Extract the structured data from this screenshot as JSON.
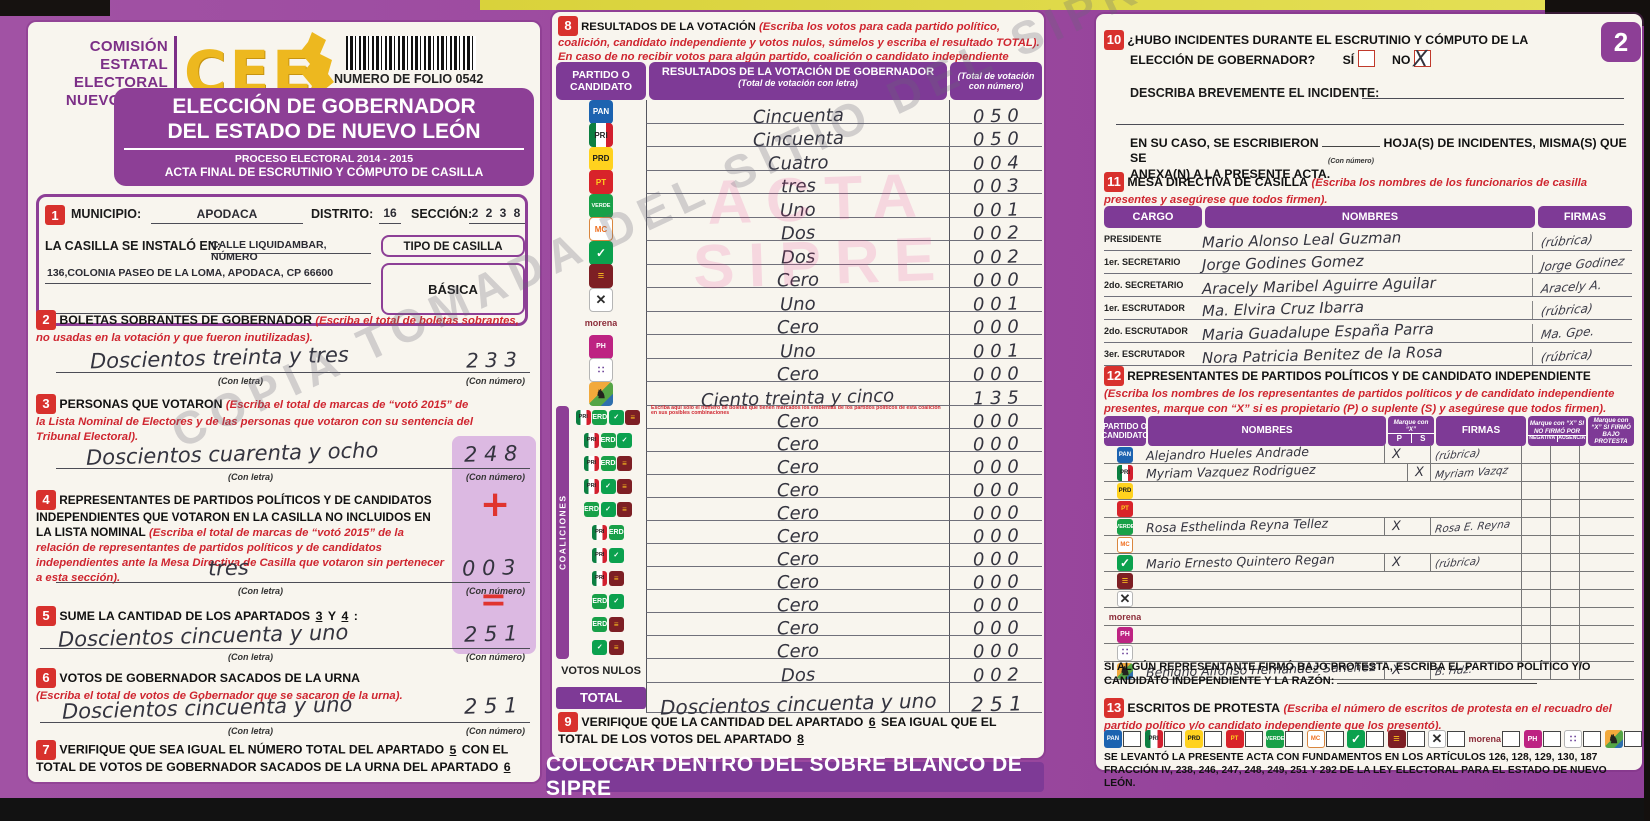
{
  "labels": {
    "con_letra": "(Con letra)",
    "con_numero": "(Con número)"
  },
  "watermarks": {
    "diagonal": "COPIA TOMADA DEL SITIO DEL SIPRE",
    "stamp1": "ACTA",
    "stamp2": "SIPRE"
  },
  "header": {
    "org1": "COMISIÓN",
    "org2": "ESTATAL",
    "org3": "ELECTORAL",
    "org4": "NUEVO LEÓN",
    "logo": "CEE",
    "folio": "NUMERO DE FOLIO 0542",
    "title1": "ELECCIÓN DE GOBERNADOR",
    "title2": "DEL ESTADO DE NUEVO LEÓN",
    "process": "PROCESO ELECTORAL  2014 - 2015",
    "acta": "ACTA FINAL DE ESCRUTINIO Y CÓMPUTO DE CASILLA",
    "page_badge": "2"
  },
  "colors": {
    "purple": "#8d3f96",
    "lavender": "#dcb9e2",
    "red": "#cf2630",
    "yellow": "#edb81f"
  },
  "s1": {
    "num": "1",
    "municipio_label": "MUNICIPIO:",
    "municipio": "APODACA",
    "distrito_label": "DISTRITO:",
    "distrito": "16",
    "seccion_label": "SECCIÓN:",
    "seccion": "2  2  3  8",
    "casilla_label": "LA CASILLA SE INSTALÓ EN:",
    "dir1": "CALLE LIQUIDAMBAR, NÚMERO",
    "dir2": "136,COLONIA PASEO DE LA LOMA, APODACA, CP 66600",
    "tipo_label": "TIPO DE CASILLA",
    "tipo": "BÁSICA"
  },
  "s2": {
    "num": "2",
    "title": "BOLETAS SOBRANTES DE GOBERNADOR",
    "instr": "(Escriba el total de boletas sobrantes, no usadas en la votación y que fueron inutilizadas).",
    "letra": "Doscientos treinta y tres",
    "numero": "2 3 3"
  },
  "s3": {
    "num": "3",
    "title": "PERSONAS QUE VOTARON",
    "instr": "(Escriba el total de marcas de “votó 2015” de la Lista Nominal de Electores y de las personas que votaron con su sentencia del Tribunal Electoral).",
    "letra": "Doscientos cuarenta y ocho",
    "numero": "2 4 8"
  },
  "s4": {
    "num": "4",
    "title": "REPRESENTANTES DE PARTIDOS POLÍTICOS Y DE CANDIDATOS INDEPENDIENTES QUE VOTARON EN LA CASILLA NO INCLUIDOS EN LA LISTA NOMINAL",
    "instr": "(Escriba el total de marcas de “votó 2015” de la relación de representantes de partidos políticos y de candidatos independientes ante la Mesa Directiva de Casilla que votaron sin pertenecer a esta sección).",
    "plus": "+",
    "letra": "tres",
    "numero": "0 0 3"
  },
  "s5": {
    "num": "5",
    "pre": "SUME LA CANTIDAD DE LOS APARTADOS",
    "ref3": "3",
    "y": "Y",
    "ref4": "4",
    "colon": ":",
    "equals": "=",
    "letra": "Doscientos cincuenta y uno",
    "numero": "2 5 1"
  },
  "s6": {
    "num": "6",
    "title": "VOTOS DE GOBERNADOR SACADOS DE LA URNA",
    "instr": "(Escriba el total de votos de Gobernador que se sacaron de la urna).",
    "letra": "Doscientos cincuenta y uno",
    "numero": "2 5 1"
  },
  "s7": {
    "num": "7",
    "pre": "VERIFIQUE QUE SEA IGUAL EL NÚMERO TOTAL DEL APARTADO",
    "ref5": "5",
    "mid": "CON EL TOTAL DE VOTOS DE GOBERNADOR SACADOS DE LA URNA DEL APARTADO",
    "ref6": "6"
  },
  "results": {
    "num": "8",
    "title": "RESULTADOS DE LA VOTACIÓN",
    "instr1": "(Escriba los votos para cada partido político, coalición, candidato independiente y votos nulos, súmelos y escriba el resultado TOTAL).",
    "instr2": "En caso de no recibir votos para algún partido, coalición o candidato independiente escriba ceros.",
    "col1": "PARTIDO O CANDIDATO",
    "col2": "RESULTADOS DE LA VOTACIÓN DE GOBERNADOR",
    "col2b": "(Total de votación con letra)",
    "col3": "(Total de votación con número)",
    "coaliciones_label": "COALICIONES",
    "coalition_note": "Escriba aquí sólo el número de boletas que tienen marcados los emblemas de los partidos políticos de esta coalición en sus posibles combinaciones",
    "parties": [
      {
        "id": "pan",
        "name": "PAN",
        "word": "Cincuenta",
        "number": "050"
      },
      {
        "id": "pri",
        "name": "PRI",
        "word": "Cincuenta",
        "number": "050"
      },
      {
        "id": "prd",
        "name": "PRD",
        "word": "Cuatro",
        "number": "004"
      },
      {
        "id": "pt",
        "name": "PT",
        "word": "tres",
        "number": "003"
      },
      {
        "id": "verde",
        "name": "VERDE",
        "word": "Uno",
        "number": "001"
      },
      {
        "id": "mc",
        "name": "Movimiento Ciudadano",
        "word": "Dos",
        "number": "002"
      },
      {
        "id": "alianza",
        "name": "Alianza",
        "word": "Dos",
        "number": "002"
      },
      {
        "id": "democrata",
        "name": "Demócrata",
        "word": "Cero",
        "number": "000"
      },
      {
        "id": "cruzada",
        "name": "Cruzada Ciudadana",
        "word": "Uno",
        "number": "001"
      },
      {
        "id": "morena",
        "name": "morena",
        "word": "Cero",
        "number": "000"
      },
      {
        "id": "humanista",
        "name": "Humanista",
        "word": "Uno",
        "number": "001"
      },
      {
        "id": "encuentro",
        "name": "Encuentro Social",
        "word": "Cero",
        "number": "000"
      },
      {
        "id": "bronco",
        "name": "Candidato Independiente",
        "word": "Ciento treinta y cinco",
        "number": "135"
      }
    ],
    "coalitions": [
      {
        "members": [
          "pri",
          "verde",
          "alianza",
          "democrata"
        ],
        "word": "Cero",
        "number": "000"
      },
      {
        "members": [
          "pri",
          "verde",
          "alianza"
        ],
        "word": "Cero",
        "number": "000"
      },
      {
        "members": [
          "pri",
          "verde",
          "democrata"
        ],
        "word": "Cero",
        "number": "000"
      },
      {
        "members": [
          "pri",
          "alianza",
          "democrata"
        ],
        "word": "Cero",
        "number": "000"
      },
      {
        "members": [
          "verde",
          "alianza",
          "democrata"
        ],
        "word": "Cero",
        "number": "000"
      },
      {
        "members": [
          "pri",
          "verde"
        ],
        "word": "Cero",
        "number": "000"
      },
      {
        "members": [
          "pri",
          "alianza"
        ],
        "word": "Cero",
        "number": "000"
      },
      {
        "members": [
          "pri",
          "democrata"
        ],
        "word": "Cero",
        "number": "000"
      },
      {
        "members": [
          "verde",
          "alianza"
        ],
        "word": "Cero",
        "number": "000"
      },
      {
        "members": [
          "verde",
          "democrata"
        ],
        "word": "Cero",
        "number": "000"
      },
      {
        "members": [
          "alianza",
          "democrata"
        ],
        "word": "Cero",
        "number": "000"
      }
    ],
    "nulos_label": "VOTOS NULOS",
    "nulos_word": "Dos",
    "nulos_number": "002",
    "total_label": "TOTAL",
    "total_word": "Doscientos cincuenta y uno",
    "total_number": "251"
  },
  "s9": {
    "num": "9",
    "pre": "VERIFIQUE QUE LA CANTIDAD DEL APARTADO",
    "ref6": "6",
    "mid": "SEA IGUAL QUE EL TOTAL DE LOS VOTOS DEL APARTADO",
    "ref8": "8"
  },
  "s10": {
    "num": "10",
    "q1": "¿HUBO INCIDENTES DURANTE EL ESCRUTINIO Y CÓMPUTO DE LA",
    "q2": "ELECCIÓN DE GOBERNADOR?",
    "si": "SÍ",
    "no": "NO",
    "no_mark": "X",
    "describa": "DESCRIBA BREVEMENTE EL INCIDENTE:",
    "caso1": "EN SU CASO, SE ESCRIBIERON",
    "con_numero": "(Con número)",
    "caso2": "HOJA(S) DE INCIDENTES, MISMA(S) QUE SE",
    "caso3": "ANEXA(N) A LA PRESENTE ACTA."
  },
  "s11": {
    "num": "11",
    "title": "MESA DIRECTIVA DE CASILLA",
    "instr": "(Escriba los nombres de los funcionarios de casilla presentes y asegúrese que todos firmen).",
    "h_cargo": "CARGO",
    "h_nombres": "NOMBRES",
    "h_firmas": "FIRMAS",
    "rows": [
      {
        "cargo": "PRESIDENTE",
        "nombre": "Mario Alonso Leal Guzman",
        "firma": "(rúbrica)"
      },
      {
        "cargo": "1er. SECRETARIO",
        "nombre": "Jorge Godines Gomez",
        "firma": "Jorge Godinez"
      },
      {
        "cargo": "2do. SECRETARIO",
        "nombre": "Aracely Maribel Aguirre Aguilar",
        "firma": "Aracely A."
      },
      {
        "cargo": "1er. ESCRUTADOR",
        "nombre": "Ma. Elvira Cruz Ibarra",
        "firma": "(rúbrica)"
      },
      {
        "cargo": "2do. ESCRUTADOR",
        "nombre": "Maria Guadalupe España Parra",
        "firma": "Ma. Gpe."
      },
      {
        "cargo": "3er. ESCRUTADOR",
        "nombre": "Nora Patricia Benitez de la Rosa",
        "firma": "(rúbrica)"
      }
    ]
  },
  "s12": {
    "num": "12",
    "title": "REPRESENTANTES DE PARTIDOS POLÍTICOS Y DE CANDIDATO INDEPENDIENTE",
    "instr": "(Escriba los nombres de los representantes de partidos políticos y de candidato independiente presentes, marque con “X” si es propietario (P) o suplente (S) y asegúrese que todos firmen).",
    "h_party": "PARTIDO O CANDIDATO",
    "h_nombres": "NOMBRES",
    "h_marque": "Marque con “X”",
    "h_p": "P",
    "h_s": "S",
    "h_firmas": "FIRMAS",
    "h_nofirmo": "Marque con “X” SI NO FIRMÓ POR",
    "h_negativa": "NEGATIVA",
    "h_ausencia": "AUSENCIA",
    "h_protesta": "Marque con “X” SI FIRMÓ BAJO PROTESTA",
    "rows": [
      {
        "party": "pan",
        "nombre": "Alejandro Hueles Andrade",
        "p": "X",
        "s": "",
        "firma": "(rúbrica)"
      },
      {
        "party": "pri",
        "nombre": "Myriam Vazquez Rodriguez",
        "p": "",
        "s": "X",
        "firma": "Myriam Vazqz"
      },
      {
        "party": "prd",
        "nombre": "",
        "p": "",
        "s": "",
        "firma": ""
      },
      {
        "party": "pt",
        "nombre": "",
        "p": "",
        "s": "",
        "firma": ""
      },
      {
        "party": "verde",
        "nombre": "Rosa Esthelinda Reyna Tellez",
        "p": "X",
        "s": "",
        "firma": "Rosa E. Reyna"
      },
      {
        "party": "mc",
        "nombre": "",
        "p": "",
        "s": "",
        "firma": ""
      },
      {
        "party": "alianza",
        "nombre": "Mario Ernesto Quintero Regan",
        "p": "X",
        "s": "",
        "firma": "(rúbrica)"
      },
      {
        "party": "democrata",
        "nombre": "",
        "p": "",
        "s": "",
        "firma": ""
      },
      {
        "party": "cruzada",
        "nombre": "",
        "p": "",
        "s": "",
        "firma": ""
      },
      {
        "party": "morena",
        "nombre": "",
        "p": "",
        "s": "",
        "firma": ""
      },
      {
        "party": "humanista",
        "nombre": "",
        "p": "",
        "s": "",
        "firma": ""
      },
      {
        "party": "encuentro",
        "nombre": "",
        "p": "",
        "s": "",
        "firma": ""
      },
      {
        "party": "bronco",
        "nombre": "Benigno Alfonso Hernandez Sanchez",
        "p": "X",
        "s": "",
        "firma": "B. Hdz."
      }
    ],
    "protest_note": "SI ALGÚN REPRESENTANTE FIRMÓ BAJO PROTESTA, ESCRIBA EL PARTIDO POLÍTICO Y/O CANDIDATO INDEPENDIENTE Y LA RAZÓN:"
  },
  "s13": {
    "num": "13",
    "title": "ESCRITOS DE PROTESTA",
    "instr": "(Escriba el número de escritos de protesta en el recuadro del partido político y/o candidato independiente que los presentó)."
  },
  "legal": "SE LEVANTÓ LA PRESENTE ACTA CON FUNDAMENTOS EN LOS ARTÍCULOS 126, 128, 129, 130, 187 FRACCIÓN IV, 238, 246, 247, 248, 249, 251 Y 292 DE LA LEY ELECTORAL PARA EL ESTADO DE NUEVO LEÓN.",
  "banner": "COLOCAR DENTRO DEL SOBRE BLANCO DE SIPRE"
}
